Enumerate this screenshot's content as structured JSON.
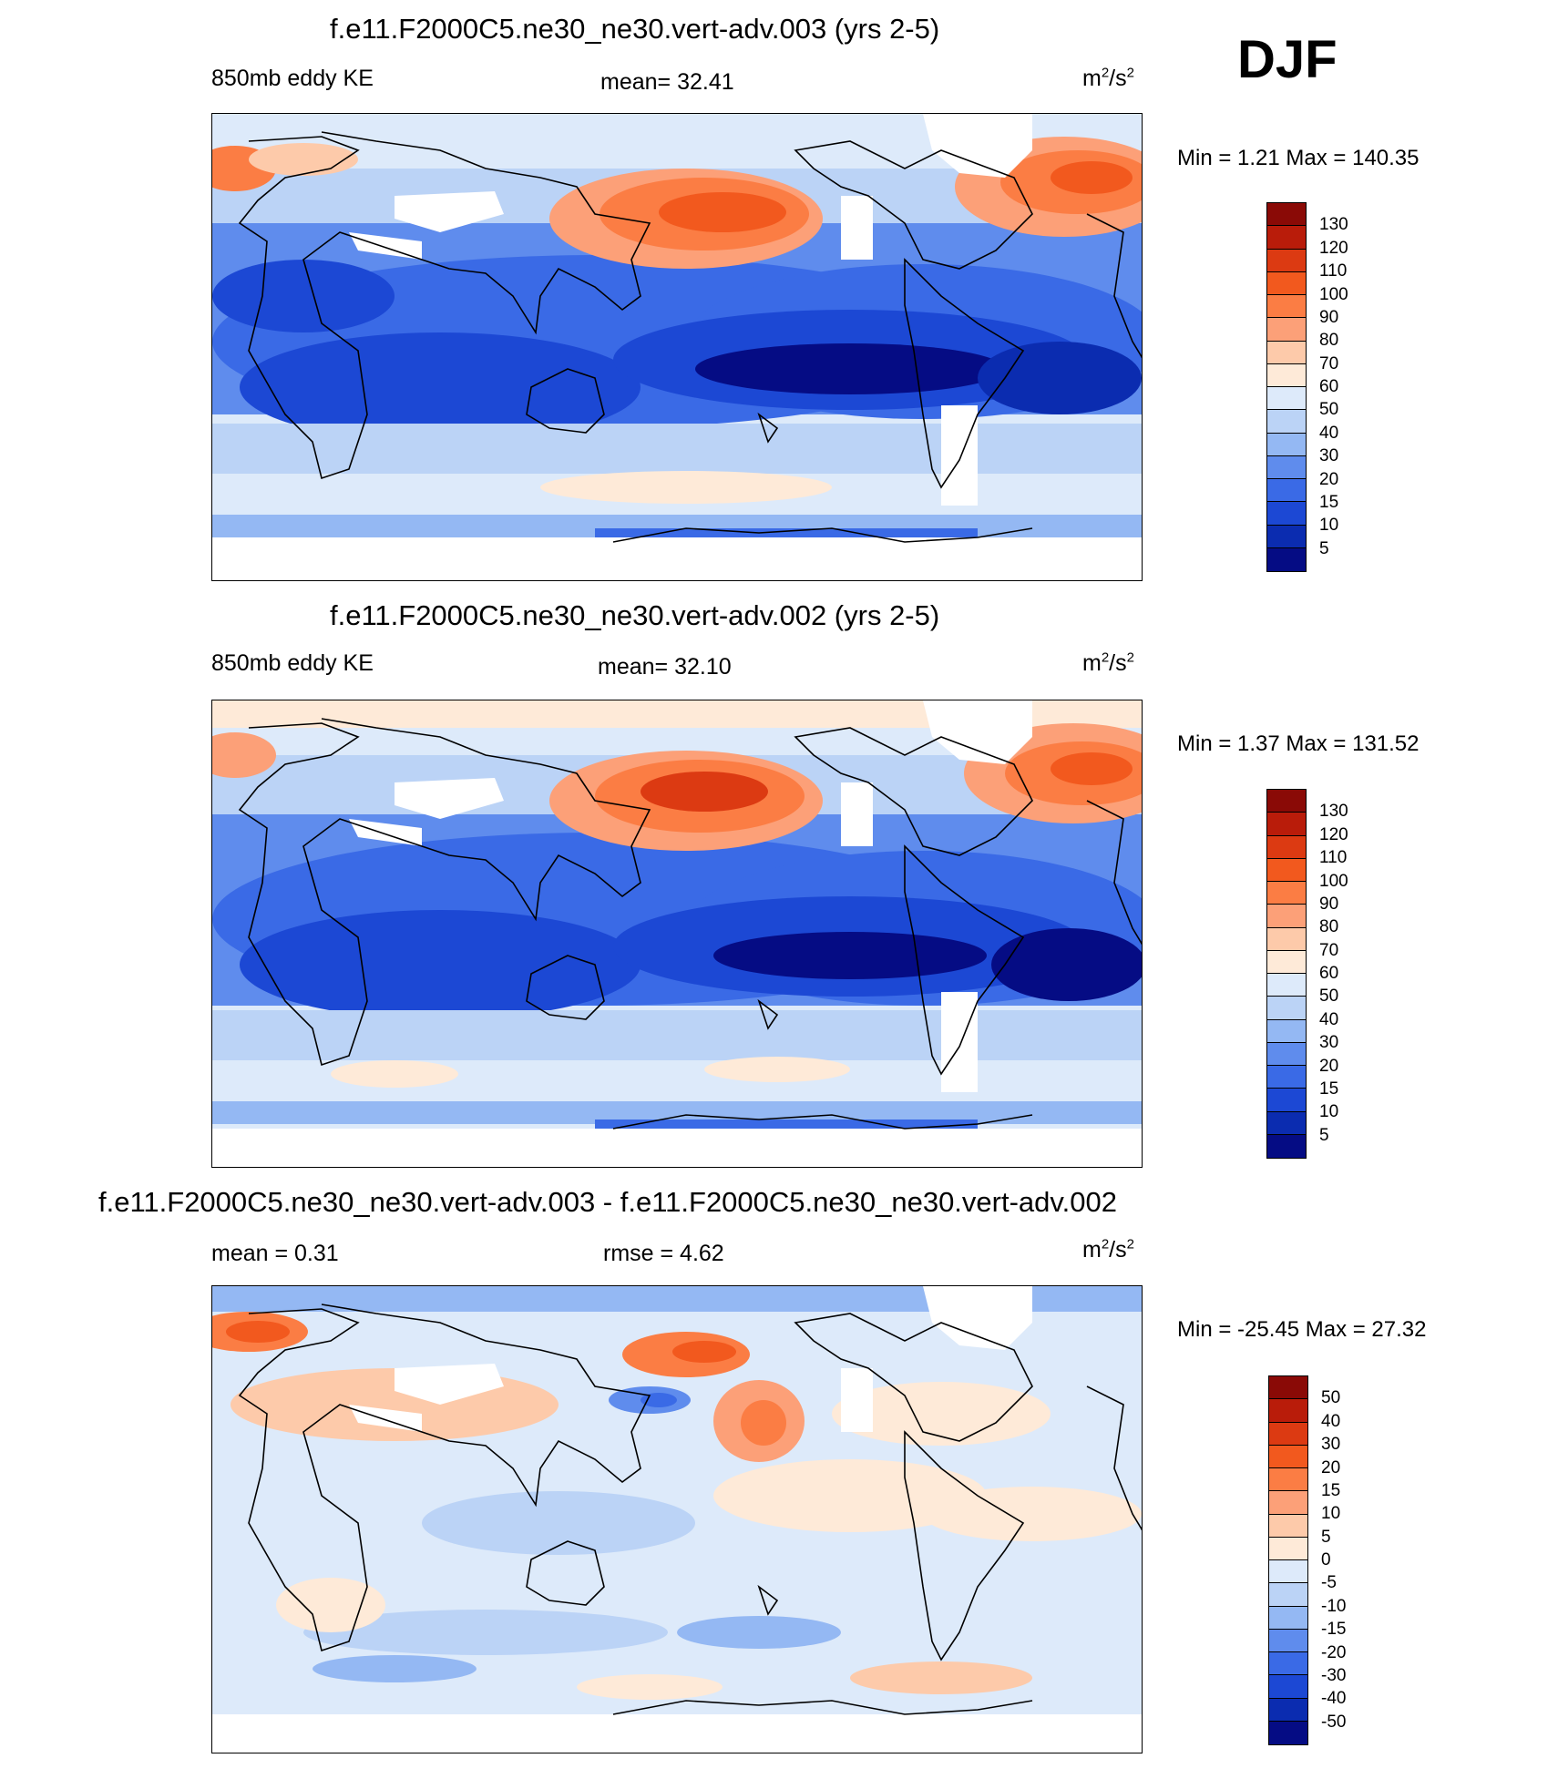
{
  "season": "DJF",
  "panel1": {
    "title": "f.e11.F2000C5.ne30_ne30.vert-adv.003 (yrs 2-5)",
    "left": "850mb eddy KE",
    "center": "mean=  32.41",
    "units_base": "m",
    "units_exp1": "2",
    "units_mid": "/s",
    "units_exp2": "2",
    "minmax": "Min =    1.21 Max = 140.35"
  },
  "panel2": {
    "title": "f.e11.F2000C5.ne30_ne30.vert-adv.002 (yrs 2-5)",
    "left": "850mb eddy KE",
    "center": "mean=  32.10",
    "units_base": "m",
    "units_exp1": "2",
    "units_mid": "/s",
    "units_exp2": "2",
    "minmax": "Min =    1.37 Max = 131.52"
  },
  "panel3": {
    "title": "f.e11.F2000C5.ne30_ne30.vert-adv.003 - f.e11.F2000C5.ne30_ne30.vert-adv.002",
    "left": "mean =    0.31",
    "center": "rmse =    4.62",
    "units_base": "m",
    "units_exp1": "2",
    "units_mid": "/s",
    "units_exp2": "2",
    "minmax": "Min = -25.45 Max =  27.32"
  },
  "colorbar_abs": {
    "labels": [
      "130",
      "120",
      "110",
      "100",
      "90",
      "80",
      "70",
      "60",
      "50",
      "40",
      "30",
      "20",
      "15",
      "10",
      "5"
    ],
    "colors": [
      "#8a0a06",
      "#b91c0a",
      "#dc3a12",
      "#f2591e",
      "#fb7d44",
      "#fca078",
      "#fdcaaa",
      "#feead8",
      "#ddeafa",
      "#bbd3f6",
      "#94b8f3",
      "#5f8ced",
      "#3a6ae6",
      "#1c48d4",
      "#0b2cb0",
      "#050c84"
    ]
  },
  "colorbar_diff": {
    "labels": [
      "50",
      "40",
      "30",
      "20",
      "15",
      "10",
      "5",
      "0",
      "-5",
      "-10",
      "-15",
      "-20",
      "-30",
      "-40",
      "-50"
    ],
    "colors": [
      "#8a0a06",
      "#b91c0a",
      "#dc3a12",
      "#f2591e",
      "#fb7d44",
      "#fca078",
      "#fdcaaa",
      "#feead8",
      "#ddeafa",
      "#bbd3f6",
      "#94b8f3",
      "#5f8ced",
      "#3a6ae6",
      "#1c48d4",
      "#0b2cb0",
      "#050c84"
    ]
  }
}
